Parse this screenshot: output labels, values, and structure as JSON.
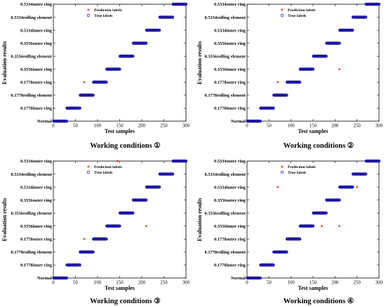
{
  "chart_data": [
    {
      "type": "scatter",
      "caption": "Working conditions ①",
      "xlabel": "Test samples",
      "ylabel": "Evaluation results",
      "xlim": [
        0,
        300
      ],
      "xticks": [
        0,
        50,
        100,
        150,
        200,
        250,
        300
      ],
      "categories": [
        "Normal",
        "0.1778inner ring",
        "0.1778rolling element",
        "0.1778outer ring",
        "0.3556inner ring",
        "0.3556rolling element",
        "0.3556outer ring",
        "0.5334inner ring",
        "0.5334rolling element",
        "0.5334outer ring"
      ],
      "grid": false,
      "legend_position": "top-left",
      "series": [
        {
          "name": "True labels",
          "marker": "circle",
          "color": "#2a1fcf",
          "segments": [
            {
              "from": 1,
              "to": 30,
              "class": 0
            },
            {
              "from": 31,
              "to": 60,
              "class": 1
            },
            {
              "from": 61,
              "to": 90,
              "class": 2
            },
            {
              "from": 91,
              "to": 120,
              "class": 3
            },
            {
              "from": 121,
              "to": 150,
              "class": 4
            },
            {
              "from": 151,
              "to": 180,
              "class": 5
            },
            {
              "from": 181,
              "to": 210,
              "class": 6
            },
            {
              "from": 211,
              "to": 240,
              "class": 7
            },
            {
              "from": 241,
              "to": 270,
              "class": 8
            },
            {
              "from": 271,
              "to": 300,
              "class": 9
            }
          ]
        },
        {
          "name": "Prediction labels",
          "marker": "asterisk",
          "color": "#e8322f",
          "points": [
            {
              "x": 70,
              "class": 3
            }
          ]
        }
      ]
    },
    {
      "type": "scatter",
      "caption": "Working conditions ②",
      "xlabel": "Test samples",
      "ylabel": "Evaluation results",
      "xlim": [
        0,
        300
      ],
      "xticks": [
        0,
        50,
        100,
        150,
        200,
        250,
        300
      ],
      "categories": [
        "Normal",
        "0.1778inner ring",
        "0.1778rolling element",
        "0.1778outer ring",
        "0.3556inner ring",
        "0.3556rolling element",
        "0.3556outer ring",
        "0.5334inner ring",
        "0.5334rolling element",
        "0.5334outer ring"
      ],
      "grid": false,
      "legend_position": "top-left",
      "series": [
        {
          "name": "True labels",
          "marker": "circle",
          "color": "#2a1fcf",
          "segments": [
            {
              "from": 1,
              "to": 30,
              "class": 0
            },
            {
              "from": 31,
              "to": 60,
              "class": 1
            },
            {
              "from": 61,
              "to": 90,
              "class": 2
            },
            {
              "from": 91,
              "to": 120,
              "class": 3
            },
            {
              "from": 121,
              "to": 150,
              "class": 4
            },
            {
              "from": 151,
              "to": 180,
              "class": 5
            },
            {
              "from": 181,
              "to": 210,
              "class": 6
            },
            {
              "from": 211,
              "to": 240,
              "class": 7
            },
            {
              "from": 241,
              "to": 270,
              "class": 8
            },
            {
              "from": 271,
              "to": 300,
              "class": 9
            }
          ]
        },
        {
          "name": "Prediction labels",
          "marker": "asterisk",
          "color": "#e8322f",
          "points": [
            {
              "x": 70,
              "class": 3
            },
            {
              "x": 210,
              "class": 4
            }
          ]
        }
      ]
    },
    {
      "type": "scatter",
      "caption": "Working conditions ③",
      "xlabel": "Test samples",
      "ylabel": "Evaluation results",
      "xlim": [
        0,
        300
      ],
      "xticks": [
        0,
        50,
        100,
        150,
        200,
        250,
        300
      ],
      "categories": [
        "Normal",
        "0.1778inner ring",
        "0.1778rolling element",
        "0.1778outer ring",
        "0.3556inner ring",
        "0.3556rolling element",
        "0.3556outer ring",
        "0.5334inner ring",
        "0.5334rolling element",
        "0.5334outer ring"
      ],
      "grid": false,
      "legend_position": "top-left",
      "series": [
        {
          "name": "True labels",
          "marker": "circle",
          "color": "#2a1fcf",
          "segments": [
            {
              "from": 1,
              "to": 30,
              "class": 0
            },
            {
              "from": 31,
              "to": 60,
              "class": 1
            },
            {
              "from": 61,
              "to": 90,
              "class": 2
            },
            {
              "from": 91,
              "to": 120,
              "class": 3
            },
            {
              "from": 121,
              "to": 150,
              "class": 4
            },
            {
              "from": 151,
              "to": 180,
              "class": 5
            },
            {
              "from": 181,
              "to": 210,
              "class": 6
            },
            {
              "from": 211,
              "to": 240,
              "class": 7
            },
            {
              "from": 241,
              "to": 270,
              "class": 8
            },
            {
              "from": 271,
              "to": 300,
              "class": 9
            }
          ]
        },
        {
          "name": "Prediction labels",
          "marker": "asterisk",
          "color": "#e8322f",
          "points": [
            {
              "x": 70,
              "class": 3
            },
            {
              "x": 145,
              "class": 9
            },
            {
              "x": 210,
              "class": 4
            }
          ]
        }
      ]
    },
    {
      "type": "scatter",
      "caption": "Working conditions ④",
      "xlabel": "Test samples",
      "ylabel": "Evaluation results",
      "xlim": [
        0,
        300
      ],
      "xticks": [
        0,
        50,
        100,
        150,
        200,
        250,
        300
      ],
      "categories": [
        "Normal",
        "0.1778inner ring",
        "0.1778rolling element",
        "0.1778outer ring",
        "0.3556inner ring",
        "0.3556rolling element",
        "0.3556outer ring",
        "0.5334inner ring",
        "0.5334rolling element",
        "0.5334outer ring"
      ],
      "grid": false,
      "legend_position": "top-left",
      "series": [
        {
          "name": "True labels",
          "marker": "circle",
          "color": "#2a1fcf",
          "segments": [
            {
              "from": 1,
              "to": 30,
              "class": 0
            },
            {
              "from": 31,
              "to": 60,
              "class": 1
            },
            {
              "from": 61,
              "to": 90,
              "class": 2
            },
            {
              "from": 91,
              "to": 120,
              "class": 3
            },
            {
              "from": 121,
              "to": 150,
              "class": 4
            },
            {
              "from": 151,
              "to": 180,
              "class": 5
            },
            {
              "from": 181,
              "to": 210,
              "class": 6
            },
            {
              "from": 211,
              "to": 240,
              "class": 7
            },
            {
              "from": 241,
              "to": 270,
              "class": 8
            },
            {
              "from": 271,
              "to": 300,
              "class": 9
            }
          ]
        },
        {
          "name": "Prediction labels",
          "marker": "asterisk",
          "color": "#e8322f",
          "points": [
            {
              "x": 70,
              "class": 7
            },
            {
              "x": 170,
              "class": 4
            },
            {
              "x": 210,
              "class": 4
            },
            {
              "x": 250,
              "class": 7
            }
          ]
        }
      ]
    }
  ]
}
